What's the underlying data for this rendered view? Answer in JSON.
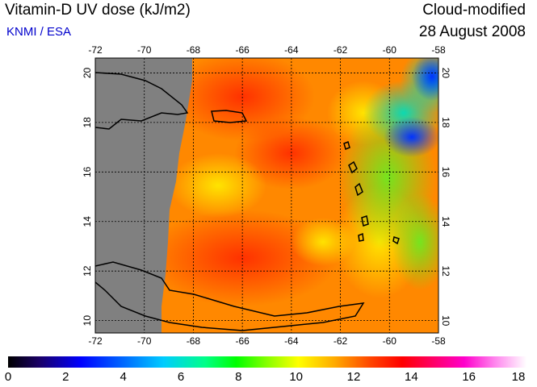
{
  "header": {
    "title": "Vitamin-D UV dose (kJ/m2)",
    "credit": "KNMI / ESA",
    "mode": "Cloud-modified",
    "date": "28 August 2008"
  },
  "map": {
    "lon_labels": [
      "-72",
      "-70",
      "-68",
      "-66",
      "-64",
      "-62",
      "-60",
      "-58"
    ],
    "lat_labels": [
      "10",
      "12",
      "14",
      "16",
      "18",
      "20"
    ]
  },
  "colorbar": {
    "ticks": [
      "0",
      "2",
      "4",
      "6",
      "8",
      "10",
      "12",
      "14",
      "16",
      "18"
    ]
  },
  "colors": {
    "land_mask": "#808080",
    "grid": "#000000"
  }
}
